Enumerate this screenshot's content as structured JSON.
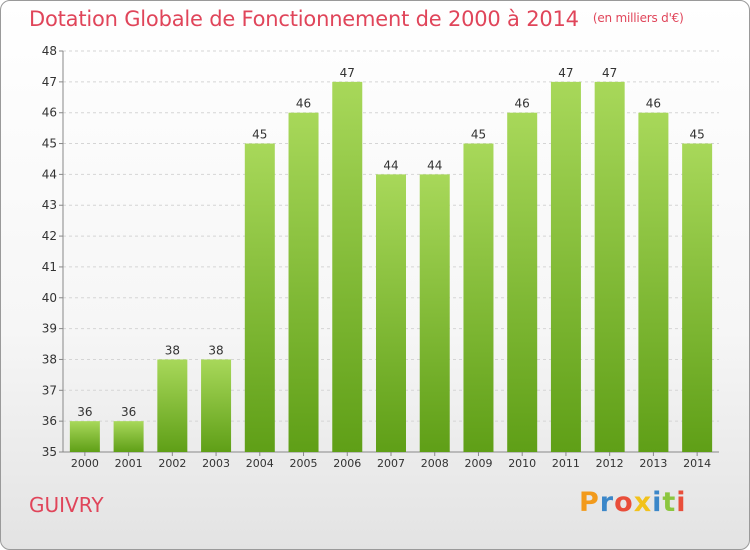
{
  "title": "Dotation Globale de Fonctionnement de 2000 à 2014",
  "unit": "(en milliers d'€)",
  "city": "GUIVRY",
  "logo": {
    "letters": [
      "P",
      "r",
      "o",
      "x",
      "i",
      "t",
      "i"
    ],
    "colors": [
      "#f29a1b",
      "#3b87c9",
      "#e94e3a",
      "#f2c21b",
      "#3b87c9",
      "#8cc63f",
      "#e94e3a"
    ]
  },
  "colors": {
    "bar_light": "#a8d85a",
    "bar_dark": "#5f9f17",
    "grid": "#d5d5d5",
    "text": "#333333"
  },
  "chart_data": {
    "type": "bar",
    "title": "Dotation Globale de Fonctionnement de 2000 à 2014",
    "xlabel": "",
    "ylabel": "",
    "ylim": [
      35,
      48
    ],
    "yticks": [
      35,
      36,
      37,
      38,
      39,
      40,
      41,
      42,
      43,
      44,
      45,
      46,
      47,
      48
    ],
    "grid": true,
    "categories": [
      "2000",
      "2001",
      "2002",
      "2003",
      "2004",
      "2005",
      "2006",
      "2007",
      "2008",
      "2009",
      "2010",
      "2011",
      "2012",
      "2013",
      "2014"
    ],
    "values": [
      36,
      36,
      38,
      38,
      45,
      46,
      47,
      44,
      44,
      45,
      46,
      47,
      47,
      46,
      45
    ]
  }
}
